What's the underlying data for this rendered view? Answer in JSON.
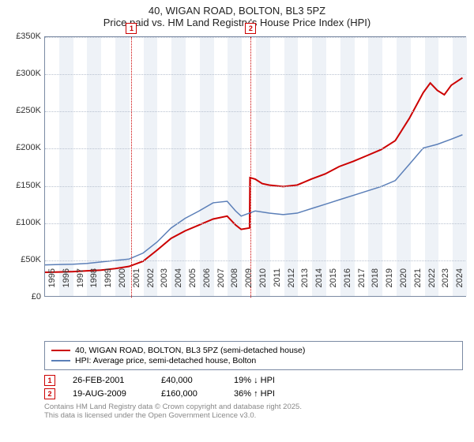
{
  "title": {
    "line1": "40, WIGAN ROAD, BOLTON, BL3 5PZ",
    "line2": "Price paid vs. HM Land Registry's House Price Index (HPI)"
  },
  "chart": {
    "type": "line",
    "background_color": "#ffffff",
    "band_color": "#eef2f7",
    "border_color": "#7b8aa3",
    "grid_color": "#b8c1cf",
    "y": {
      "min": 0,
      "max": 350000,
      "step": 50000,
      "ticks": [
        "£0",
        "£50K",
        "£100K",
        "£150K",
        "£200K",
        "£250K",
        "£300K",
        "£350K"
      ]
    },
    "x": {
      "min": 1995,
      "max": 2025,
      "years": [
        1995,
        1996,
        1997,
        1998,
        1999,
        2000,
        2001,
        2002,
        2003,
        2004,
        2005,
        2006,
        2007,
        2008,
        2009,
        2010,
        2011,
        2012,
        2013,
        2014,
        2015,
        2016,
        2017,
        2018,
        2019,
        2020,
        2021,
        2022,
        2023,
        2024
      ]
    },
    "series": [
      {
        "name": "40, WIGAN ROAD, BOLTON, BL3 5PZ (semi-detached house)",
        "color": "#cc0000",
        "width": 2,
        "points": [
          [
            1995,
            32000
          ],
          [
            1996,
            32500
          ],
          [
            1997,
            33000
          ],
          [
            1998,
            34000
          ],
          [
            1999,
            35000
          ],
          [
            2000,
            37000
          ],
          [
            2001,
            40000
          ],
          [
            2002,
            47000
          ],
          [
            2003,
            62000
          ],
          [
            2004,
            78000
          ],
          [
            2005,
            88000
          ],
          [
            2006,
            96000
          ],
          [
            2007,
            104000
          ],
          [
            2008,
            108000
          ],
          [
            2008.6,
            96000
          ],
          [
            2009,
            90000
          ],
          [
            2009.6,
            92000
          ],
          [
            2009.63,
            160000
          ],
          [
            2010,
            158000
          ],
          [
            2010.5,
            152000
          ],
          [
            2011,
            150000
          ],
          [
            2012,
            148000
          ],
          [
            2013,
            150000
          ],
          [
            2014,
            158000
          ],
          [
            2015,
            165000
          ],
          [
            2016,
            175000
          ],
          [
            2017,
            182000
          ],
          [
            2018,
            190000
          ],
          [
            2019,
            198000
          ],
          [
            2020,
            210000
          ],
          [
            2021,
            240000
          ],
          [
            2022,
            275000
          ],
          [
            2022.5,
            288000
          ],
          [
            2023,
            278000
          ],
          [
            2023.5,
            272000
          ],
          [
            2024,
            285000
          ],
          [
            2024.8,
            295000
          ]
        ]
      },
      {
        "name": "HPI: Average price, semi-detached house, Bolton",
        "color": "#5b7fb8",
        "width": 1.5,
        "points": [
          [
            1995,
            42000
          ],
          [
            1996,
            42500
          ],
          [
            1997,
            43000
          ],
          [
            1998,
            44000
          ],
          [
            1999,
            46000
          ],
          [
            2000,
            48000
          ],
          [
            2001,
            50000
          ],
          [
            2002,
            58000
          ],
          [
            2003,
            73000
          ],
          [
            2004,
            92000
          ],
          [
            2005,
            105000
          ],
          [
            2006,
            115000
          ],
          [
            2007,
            126000
          ],
          [
            2008,
            128000
          ],
          [
            2008.6,
            115000
          ],
          [
            2009,
            108000
          ],
          [
            2010,
            115000
          ],
          [
            2011,
            112000
          ],
          [
            2012,
            110000
          ],
          [
            2013,
            112000
          ],
          [
            2014,
            118000
          ],
          [
            2015,
            124000
          ],
          [
            2016,
            130000
          ],
          [
            2017,
            136000
          ],
          [
            2018,
            142000
          ],
          [
            2019,
            148000
          ],
          [
            2020,
            156000
          ],
          [
            2021,
            178000
          ],
          [
            2022,
            200000
          ],
          [
            2023,
            205000
          ],
          [
            2024,
            212000
          ],
          [
            2024.8,
            218000
          ]
        ]
      }
    ],
    "markers": [
      {
        "id": "1",
        "year": 2001.15
      },
      {
        "id": "2",
        "year": 2009.63
      }
    ]
  },
  "transactions": [
    {
      "id": "1",
      "date": "26-FEB-2001",
      "price": "£40,000",
      "delta": "19% ↓ HPI"
    },
    {
      "id": "2",
      "date": "19-AUG-2009",
      "price": "£160,000",
      "delta": "36% ↑ HPI"
    }
  ],
  "footer": {
    "line1": "Contains HM Land Registry data © Crown copyright and database right 2025.",
    "line2": "This data is licensed under the Open Government Licence v3.0."
  }
}
